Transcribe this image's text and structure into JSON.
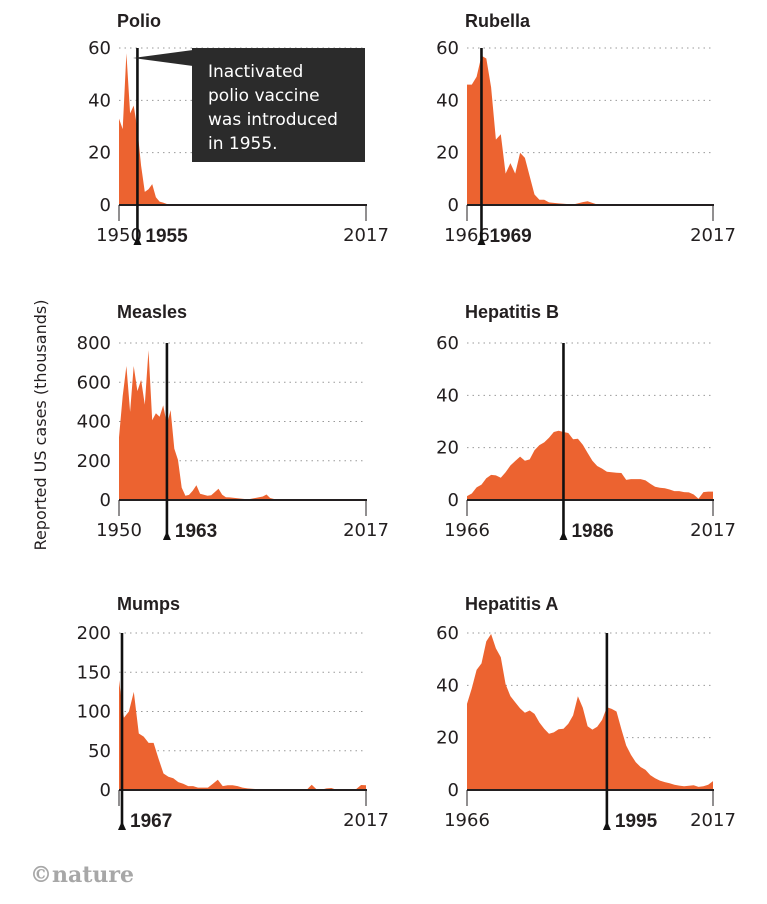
{
  "y_axis_label": "Reported US cases (thousands)",
  "credit": "©nature",
  "accent_color": "#ec6330",
  "chart_data": [
    {
      "type": "area",
      "title": "Polio",
      "x_range": [
        1950,
        2017
      ],
      "ylim": [
        0,
        60
      ],
      "yticks": [
        0,
        20,
        40,
        60
      ],
      "xtick_labels": [
        "1950",
        "2017"
      ],
      "vaccine_year": 1955,
      "vaccine_label": "1955",
      "annotation": "Inactivated polio vaccine was introduced in 1955.",
      "annotation_lines": [
        "Inactivated",
        "polio vaccine",
        "was introduced",
        "in 1955."
      ],
      "x": [
        1950,
        1951,
        1952,
        1953,
        1954,
        1955,
        1956,
        1957,
        1958,
        1959,
        1960,
        1961,
        1962,
        1963,
        1965,
        1970,
        1980,
        1990,
        2000,
        2017
      ],
      "values": [
        33,
        29,
        58,
        35,
        38,
        29,
        15,
        5,
        6,
        8,
        3,
        1.3,
        0.9,
        0.4,
        0.1,
        0.03,
        0.01,
        0.01,
        0,
        0
      ]
    },
    {
      "type": "area",
      "title": "Rubella",
      "x_range": [
        1966,
        2017
      ],
      "ylim": [
        0,
        60
      ],
      "yticks": [
        0,
        20,
        40,
        60
      ],
      "xtick_labels": [
        "1966",
        "2017"
      ],
      "vaccine_year": 1969,
      "vaccine_label": "1969",
      "x": [
        1966,
        1967,
        1968,
        1969,
        1970,
        1971,
        1972,
        1973,
        1974,
        1975,
        1976,
        1977,
        1978,
        1979,
        1980,
        1981,
        1982,
        1983,
        1985,
        1988,
        1990,
        1991,
        1993,
        1996,
        2000,
        2005,
        2017
      ],
      "values": [
        46,
        46,
        49,
        57,
        56,
        45,
        25,
        27,
        12,
        16,
        12,
        20,
        18,
        11,
        4,
        2,
        2,
        1,
        0.6,
        0.2,
        1.1,
        1.4,
        0.2,
        0.2,
        0.2,
        0,
        0
      ]
    },
    {
      "type": "area",
      "title": "Measles",
      "x_range": [
        1950,
        2017
      ],
      "ylim": [
        0,
        800
      ],
      "yticks": [
        0,
        200,
        400,
        600,
        800
      ],
      "xtick_labels": [
        "1950",
        "2017"
      ],
      "vaccine_year": 1963,
      "vaccine_label": "1963",
      "x": [
        1950,
        1951,
        1952,
        1953,
        1954,
        1955,
        1956,
        1957,
        1958,
        1959,
        1960,
        1961,
        1962,
        1963,
        1964,
        1965,
        1966,
        1967,
        1968,
        1969,
        1970,
        1971,
        1972,
        1973,
        1974,
        1975,
        1976,
        1977,
        1978,
        1979,
        1980,
        1985,
        1989,
        1990,
        1991,
        1993,
        2000,
        2017
      ],
      "values": [
        319,
        530,
        683,
        449,
        683,
        555,
        612,
        486,
        763,
        406,
        442,
        424,
        482,
        385,
        458,
        262,
        204,
        63,
        22,
        26,
        47,
        75,
        32,
        27,
        22,
        24,
        41,
        57,
        27,
        14,
        13,
        3,
        18,
        28,
        10,
        0.3,
        0.1,
        0.1
      ]
    },
    {
      "type": "area",
      "title": "Hepatitis B",
      "x_range": [
        1966,
        2017
      ],
      "ylim": [
        0,
        60
      ],
      "yticks": [
        0,
        20,
        40,
        60
      ],
      "xtick_labels": [
        "1966",
        "2017"
      ],
      "vaccine_year": 1986,
      "vaccine_label": "1986",
      "x": [
        1966,
        1967,
        1968,
        1969,
        1970,
        1971,
        1972,
        1973,
        1974,
        1975,
        1976,
        1977,
        1978,
        1979,
        1980,
        1981,
        1982,
        1983,
        1984,
        1985,
        1986,
        1987,
        1988,
        1989,
        1990,
        1991,
        1992,
        1993,
        1994,
        1995,
        1996,
        1997,
        1998,
        1999,
        2000,
        2001,
        2002,
        2003,
        2004,
        2005,
        2006,
        2007,
        2008,
        2009,
        2010,
        2011,
        2012,
        2013,
        2014,
        2015,
        2016,
        2017
      ],
      "values": [
        1.5,
        2.5,
        4.8,
        5.9,
        8.3,
        9.6,
        9.4,
        8.5,
        10.6,
        13.2,
        14.9,
        16.6,
        15,
        15.5,
        19,
        21,
        22,
        23.8,
        26,
        26.5,
        26,
        25.6,
        23.2,
        23.4,
        21.1,
        18,
        15,
        13,
        12,
        10.8,
        10.6,
        10.4,
        10.3,
        7.7,
        8,
        8,
        8,
        7.5,
        6.2,
        5.1,
        4.7,
        4.5,
        4,
        3.4,
        3.4,
        3,
        2.9,
        2.1,
        0.5,
        3,
        3.2,
        3.2
      ]
    },
    {
      "type": "area",
      "title": "Mumps",
      "x_range": [
        1967,
        2017
      ],
      "ylim": [
        0,
        200
      ],
      "yticks": [
        0,
        50,
        100,
        150,
        200
      ],
      "xtick_labels": [
        "2017"
      ],
      "vaccine_year": 1967,
      "vaccine_label": "1967",
      "x": [
        1967,
        1968,
        1969,
        1970,
        1971,
        1972,
        1973,
        1974,
        1975,
        1976,
        1977,
        1978,
        1979,
        1980,
        1981,
        1982,
        1983,
        1984,
        1985,
        1986,
        1987,
        1988,
        1989,
        1990,
        1991,
        1992,
        1993,
        1995,
        2000,
        2005,
        2006,
        2007,
        2008,
        2009,
        2010,
        2011,
        2012,
        2013,
        2014,
        2015,
        2016,
        2017
      ],
      "values": [
        140,
        92,
        100,
        125,
        72,
        68,
        60,
        60,
        40,
        21,
        17,
        15,
        10,
        8,
        5,
        5,
        3,
        3,
        3,
        8,
        13,
        5,
        6,
        6,
        5,
        3,
        2,
        1,
        0.3,
        0.3,
        6.6,
        0.8,
        0.5,
        2,
        2.6,
        0.4,
        0.2,
        0.4,
        1.2,
        1.1,
        6.4,
        6.1
      ]
    },
    {
      "type": "area",
      "title": "Hepatitis A",
      "x_range": [
        1966,
        2017
      ],
      "ylim": [
        0,
        60
      ],
      "yticks": [
        0,
        20,
        40,
        60
      ],
      "xtick_labels": [
        "1966",
        "2017"
      ],
      "vaccine_year": 1995,
      "vaccine_label": "1995",
      "x": [
        1966,
        1967,
        1968,
        1969,
        1970,
        1971,
        1972,
        1973,
        1974,
        1975,
        1976,
        1977,
        1978,
        1979,
        1980,
        1981,
        1982,
        1983,
        1984,
        1985,
        1986,
        1987,
        1988,
        1989,
        1990,
        1991,
        1992,
        1993,
        1994,
        1995,
        1996,
        1997,
        1998,
        1999,
        2000,
        2001,
        2002,
        2003,
        2004,
        2005,
        2006,
        2007,
        2008,
        2009,
        2010,
        2011,
        2012,
        2013,
        2014,
        2015,
        2016,
        2017
      ],
      "values": [
        32.9,
        38.9,
        45.9,
        48.4,
        56.8,
        59.6,
        54.1,
        50.7,
        40.4,
        35.9,
        33.5,
        31.2,
        29.5,
        30.4,
        29.1,
        25.8,
        23.4,
        21.5,
        22,
        23.2,
        23.4,
        25.3,
        28.5,
        35.8,
        31.4,
        24.4,
        23.1,
        24.2,
        26.8,
        31.6,
        31,
        30.0,
        23.2,
        17,
        13.4,
        10.6,
        8.8,
        7.7,
        5.7,
        4.5,
        3.6,
        3,
        2.6,
        2,
        1.7,
        1.4,
        1.6,
        1.8,
        1.2,
        1.4,
        2,
        3.4
      ]
    }
  ]
}
